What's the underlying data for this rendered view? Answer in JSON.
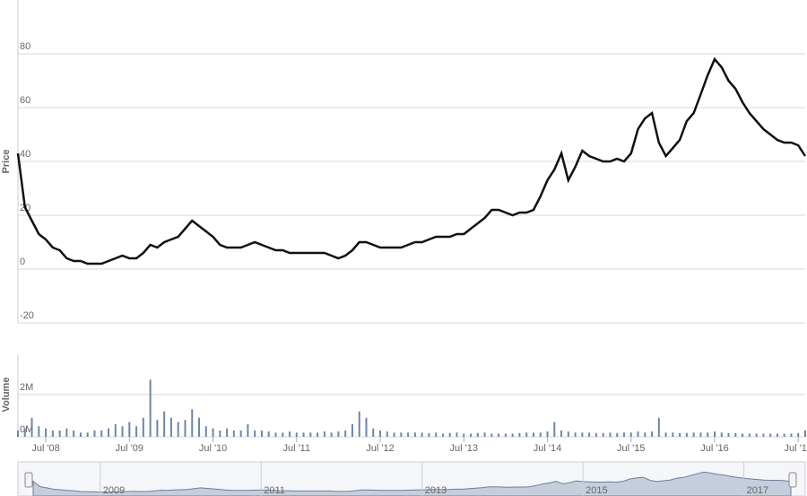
{
  "chart_data": [
    {
      "type": "line",
      "y_label": "Price",
      "x": [
        "2008-03",
        "2008-04",
        "2008-05",
        "2008-06",
        "2008-07",
        "2008-08",
        "2008-09",
        "2008-10",
        "2008-11",
        "2008-12",
        "2009-01",
        "2009-02",
        "2009-03",
        "2009-04",
        "2009-05",
        "2009-06",
        "2009-07",
        "2009-08",
        "2009-09",
        "2009-10",
        "2009-11",
        "2009-12",
        "2010-01",
        "2010-02",
        "2010-03",
        "2010-04",
        "2010-05",
        "2010-06",
        "2010-07",
        "2010-08",
        "2010-09",
        "2010-10",
        "2010-11",
        "2010-12",
        "2011-01",
        "2011-02",
        "2011-03",
        "2011-04",
        "2011-05",
        "2011-06",
        "2011-07",
        "2011-08",
        "2011-09",
        "2011-10",
        "2011-11",
        "2011-12",
        "2012-01",
        "2012-02",
        "2012-03",
        "2012-04",
        "2012-05",
        "2012-06",
        "2012-07",
        "2012-08",
        "2012-09",
        "2012-10",
        "2012-11",
        "2012-12",
        "2013-01",
        "2013-02",
        "2013-03",
        "2013-04",
        "2013-05",
        "2013-06",
        "2013-07",
        "2013-08",
        "2013-09",
        "2013-10",
        "2013-11",
        "2013-12",
        "2014-01",
        "2014-02",
        "2014-03",
        "2014-04",
        "2014-05",
        "2014-06",
        "2014-07",
        "2014-08",
        "2014-09",
        "2014-10",
        "2014-11",
        "2014-12",
        "2015-01",
        "2015-02",
        "2015-03",
        "2015-04",
        "2015-05",
        "2015-06",
        "2015-07",
        "2015-08",
        "2015-09",
        "2015-10",
        "2015-11",
        "2015-12",
        "2016-01",
        "2016-02",
        "2016-03",
        "2016-04",
        "2016-05",
        "2016-06",
        "2016-07",
        "2016-08",
        "2016-09",
        "2016-10",
        "2016-11",
        "2016-12",
        "2017-01",
        "2017-02",
        "2017-03",
        "2017-04",
        "2017-05",
        "2017-06",
        "2017-07",
        "2017-08"
      ],
      "series": [
        {
          "color": "#111111",
          "values": [
            43,
            23,
            18,
            13,
            11,
            8,
            7,
            4,
            3,
            3,
            2,
            2,
            2,
            3,
            4,
            5,
            4,
            4,
            6,
            9,
            8,
            10,
            11,
            12,
            15,
            18,
            16,
            14,
            12,
            9,
            8,
            8,
            8,
            9,
            10,
            9,
            8,
            7,
            7,
            6,
            6,
            6,
            6,
            6,
            6,
            5,
            4,
            5,
            7,
            10,
            10,
            9,
            8,
            8,
            8,
            8,
            9,
            10,
            10,
            11,
            12,
            12,
            12,
            13,
            13,
            15,
            17,
            19,
            22,
            22,
            21,
            20,
            21,
            21,
            22,
            27,
            33,
            37,
            43,
            33,
            38,
            44,
            42,
            41,
            40,
            40,
            41,
            40,
            43,
            52,
            56,
            58,
            47,
            42,
            45,
            48,
            55,
            58,
            65,
            72,
            78,
            75,
            70,
            67,
            62,
            58,
            55,
            52,
            50,
            48,
            47,
            47,
            46,
            42
          ]
        }
      ],
      "xlim": [
        "2008-03",
        "2017-08"
      ],
      "xticks": [
        {
          "value": "2008-07",
          "label": "Jul '08"
        },
        {
          "value": "2009-07",
          "label": "Jul '09"
        },
        {
          "value": "2010-07",
          "label": "Jul '10"
        },
        {
          "value": "2011-07",
          "label": "Jul '11"
        },
        {
          "value": "2012-07",
          "label": "Jul '12"
        },
        {
          "value": "2013-07",
          "label": "Jul '13"
        },
        {
          "value": "2014-07",
          "label": "Jul '14"
        },
        {
          "value": "2015-07",
          "label": "Jul '15"
        },
        {
          "value": "2016-07",
          "label": "Jul '16"
        },
        {
          "value": "2017-07",
          "label": "Jul '17"
        }
      ],
      "ylim": [
        -20,
        100
      ],
      "yticks": [
        -20,
        0,
        20,
        40,
        60,
        80
      ],
      "grid": true,
      "navigator_color": "#b8c4d6",
      "navigator_ticks": [
        {
          "value": "2009-01",
          "label": "2009"
        },
        {
          "value": "2011-01",
          "label": "2011"
        },
        {
          "value": "2013-01",
          "label": "2013"
        },
        {
          "value": "2015-01",
          "label": "2015"
        },
        {
          "value": "2017-01",
          "label": "2017"
        }
      ]
    },
    {
      "type": "bar",
      "y_label": "Volume",
      "color": "#6d86a8",
      "values": [
        300000,
        400000,
        900000,
        500000,
        400000,
        300000,
        300000,
        400000,
        300000,
        200000,
        200000,
        300000,
        300000,
        400000,
        600000,
        500000,
        700000,
        500000,
        900000,
        2700000,
        800000,
        1200000,
        900000,
        700000,
        800000,
        1300000,
        900000,
        500000,
        400000,
        300000,
        400000,
        300000,
        300000,
        600000,
        300000,
        300000,
        250000,
        200000,
        200000,
        250000,
        200000,
        200000,
        200000,
        200000,
        250000,
        200000,
        250000,
        300000,
        600000,
        1200000,
        900000,
        400000,
        300000,
        250000,
        200000,
        200000,
        200000,
        200000,
        200000,
        180000,
        200000,
        150000,
        180000,
        200000,
        150000,
        150000,
        180000,
        200000,
        150000,
        150000,
        150000,
        150000,
        180000,
        200000,
        200000,
        200000,
        250000,
        700000,
        300000,
        250000,
        200000,
        200000,
        200000,
        180000,
        180000,
        200000,
        180000,
        200000,
        200000,
        250000,
        200000,
        250000,
        900000,
        200000,
        200000,
        180000,
        180000,
        200000,
        200000,
        200000,
        250000,
        200000,
        180000,
        180000,
        150000,
        150000,
        150000,
        150000,
        150000,
        150000,
        150000,
        150000,
        180000,
        300000
      ],
      "ylim": [
        0,
        3900000
      ],
      "yticks": [
        {
          "value": 0,
          "label": "0M"
        },
        {
          "value": 2000000,
          "label": "2M"
        }
      ],
      "grid": true
    }
  ]
}
